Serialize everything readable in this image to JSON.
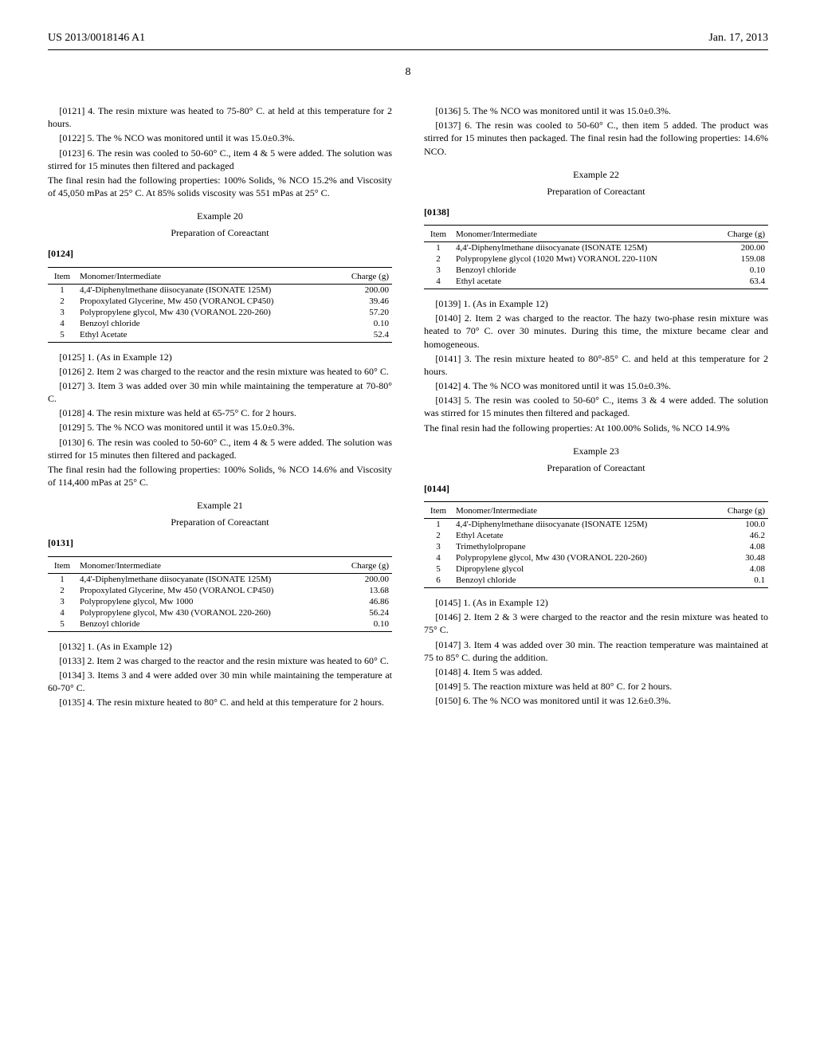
{
  "header": {
    "left": "US 2013/0018146 A1",
    "right": "Jan. 17, 2013",
    "page": "8"
  },
  "left_col": {
    "p0121": "[0121]   4. The resin mixture was heated to 75-80° C. at held at this temperature for 2 hours.",
    "p0122": "[0122]   5. The % NCO was monitored until it was 15.0±0.3%.",
    "p0123": "[0123]   6. The resin was cooled to 50-60° C., item 4 & 5 were added. The solution was stirred for 15 minutes then filtered and packaged",
    "p_after_0123": "The final resin had the following properties: 100% Solids, % NCO 15.2% and Viscosity of 45,050 mPas at 25° C. At 85% solids viscosity was 551 mPas at 25° C.",
    "ex20_title": "Example 20",
    "ex20_sub": "Preparation of Coreactant",
    "p0124": "[0124]",
    "table20": {
      "h1": "Item",
      "h2": "Monomer/Intermediate",
      "h3": "Charge (g)",
      "rows": [
        {
          "n": "1",
          "m": "4,4'-Diphenylmethane diisocyanate (ISONATE 125M)",
          "c": "200.00"
        },
        {
          "n": "2",
          "m": "Propoxylated Glycerine, Mw 450 (VORANOL CP450)",
          "c": "39.46"
        },
        {
          "n": "3",
          "m": "Polypropylene glycol, Mw 430 (VORANOL 220-260)",
          "c": "57.20"
        },
        {
          "n": "4",
          "m": "Benzoyl chloride",
          "c": "0.10"
        },
        {
          "n": "5",
          "m": "Ethyl Acetate",
          "c": "52.4"
        }
      ]
    },
    "p0125": "[0125]   1. (As in Example 12)",
    "p0126": "[0126]   2. Item 2 was charged to the reactor and the resin mixture was heated to 60° C.",
    "p0127": "[0127]   3. Item 3 was added over 30 min while maintaining the temperature at 70-80° C.",
    "p0128": "[0128]   4. The resin mixture was held at 65-75° C. for 2 hours.",
    "p0129": "[0129]   5. The % NCO was monitored until it was 15.0±0.3%.",
    "p0130": "[0130]   6. The resin was cooled to 50-60° C., item 4 & 5 were added. The solution was stirred for 15 minutes then filtered and packaged.",
    "p_after_0130": "The final resin had the following properties: 100% Solids, % NCO 14.6% and Viscosity of 114,400 mPas at 25° C.",
    "ex21_title": "Example 21",
    "ex21_sub": "Preparation of Coreactant",
    "p0131": "[0131]",
    "table21": {
      "h1": "Item",
      "h2": "Monomer/Intermediate",
      "h3": "Charge (g)",
      "rows": [
        {
          "n": "1",
          "m": "4,4'-Diphenylmethane diisocyanate (ISONATE 125M)",
          "c": "200.00"
        },
        {
          "n": "2",
          "m": "Propoxylated Glycerine, Mw 450 (VORANOL CP450)",
          "c": "13.68"
        },
        {
          "n": "3",
          "m": "Polypropylene glycol, Mw 1000",
          "c": "46.86"
        },
        {
          "n": "4",
          "m": "Polypropylene glycol, Mw 430 (VORANOL 220-260)",
          "c": "56.24"
        },
        {
          "n": "5",
          "m": "Benzoyl chloride",
          "c": "0.10"
        }
      ]
    },
    "p0132": "[0132]   1. (As in Example 12)",
    "p0133": "[0133]   2. Item 2 was charged to the reactor and the resin mixture was heated to 60° C.",
    "p0134": "[0134]   3. Items 3 and 4 were added over 30 min while maintaining the temperature at 60-70° C.",
    "p0135": "[0135]   4. The resin mixture heated to 80° C. and held at this temperature for 2 hours."
  },
  "right_col": {
    "p0136": "[0136]   5. The % NCO was monitored until it was 15.0±0.3%.",
    "p0137": "[0137]   6. The resin was cooled to 50-60° C., then item 5 added. The product was stirred for 15 minutes then packaged. The final resin had the following properties: 14.6% NCO.",
    "ex22_title": "Example 22",
    "ex22_sub": "Preparation of Coreactant",
    "p0138": "[0138]",
    "table22": {
      "h1": "Item",
      "h2": "Monomer/Intermediate",
      "h3": "Charge (g)",
      "rows": [
        {
          "n": "1",
          "m": "4,4'-Diphenylmethane diisocyanate (ISONATE 125M)",
          "c": "200.00"
        },
        {
          "n": "2",
          "m": "Polypropylene glycol (1020 Mwt) VORANOL 220-110N",
          "c": "159.08"
        },
        {
          "n": "3",
          "m": "Benzoyl chloride",
          "c": "0.10"
        },
        {
          "n": "4",
          "m": "Ethyl acetate",
          "c": "63.4"
        }
      ]
    },
    "p0139": "[0139]   1. (As in Example 12)",
    "p0140": "[0140]   2. Item 2 was charged to the reactor. The hazy two-phase resin mixture was heated to 70° C. over 30 minutes. During this time, the mixture became clear and homogeneous.",
    "p0141": "[0141]   3. The resin mixture heated to 80°-85° C. and held at this temperature for 2 hours.",
    "p0142": "[0142]   4. The % NCO was monitored until it was 15.0±0.3%.",
    "p0143": "[0143]   5. The resin was cooled to 50-60° C., items 3 & 4 were added. The solution was stirred for 15 minutes then filtered and packaged.",
    "p_after_0143": "The final resin had the following properties: At 100.00% Solids, % NCO 14.9%",
    "ex23_title": "Example 23",
    "ex23_sub": "Preparation of Coreactant",
    "p0144": "[0144]",
    "table23": {
      "h1": "Item",
      "h2": "Monomer/Intermediate",
      "h3": "Charge (g)",
      "rows": [
        {
          "n": "1",
          "m": "4,4'-Diphenylmethane diisocyanate (ISONATE 125M)",
          "c": "100.0"
        },
        {
          "n": "2",
          "m": "Ethyl Acetate",
          "c": "46.2"
        },
        {
          "n": "3",
          "m": "Trimethylolpropane",
          "c": "4.08"
        },
        {
          "n": "4",
          "m": "Polypropylene glycol, Mw 430 (VORANOL 220-260)",
          "c": "30.48"
        },
        {
          "n": "5",
          "m": "Dipropylene glycol",
          "c": "4.08"
        },
        {
          "n": "6",
          "m": "Benzoyl chloride",
          "c": "0.1"
        }
      ]
    },
    "p0145": "[0145]   1. (As in Example 12)",
    "p0146": "[0146]   2. Item 2 & 3 were charged to the reactor and the resin mixture was heated to 75° C.",
    "p0147": "[0147]   3. Item 4 was added over 30 min. The reaction temperature was maintained at 75 to 85° C. during the addition.",
    "p0148": "[0148]   4. Item 5 was added.",
    "p0149": "[0149]   5. The reaction mixture was held at 80° C. for 2 hours.",
    "p0150": "[0150]   6. The % NCO was monitored until it was 12.6±0.3%."
  }
}
